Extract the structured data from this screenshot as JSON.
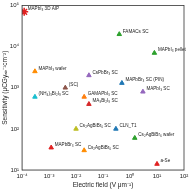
{
  "chart_data": {
    "type": "scatter",
    "x_label": "Electric field (V μm⁻¹)",
    "y_label": "Sensitivity (μCGyₐᵢᵣ⁻¹cm⁻²)",
    "log": true,
    "grid": false,
    "xlim": [
      0.0001,
      100
    ],
    "xticks": [
      {
        "value": 0.0001,
        "label": "10⁻⁴"
      },
      {
        "value": 0.001,
        "label": "10⁻³"
      },
      {
        "value": 0.01,
        "label": "10⁻²"
      },
      {
        "value": 0.1,
        "label": "10⁻¹"
      },
      {
        "value": 1,
        "label": "10⁰"
      },
      {
        "value": 10,
        "label": "10¹"
      },
      {
        "value": 100,
        "label": "10²"
      }
    ],
    "ylim": [
      10,
      100000
    ],
    "yticks": [
      {
        "value": 10,
        "label": "10¹"
      },
      {
        "value": 100,
        "label": "10²"
      },
      {
        "value": 1000,
        "label": "10³"
      },
      {
        "value": 10000,
        "label": "10⁴"
      },
      {
        "value": 100000,
        "label": "10⁵"
      }
    ],
    "series": [
      {
        "name": "MAPbI₃ 3D AIP",
        "color": "#e02020",
        "marker": "star",
        "x": [
          0.00012
        ],
        "values": [
          70000
        ]
      },
      {
        "name": "FAMACs SC",
        "color": "#2ca02c",
        "marker": "triangle",
        "x": [
          0.4
        ],
        "values": [
          20000
        ]
      },
      {
        "name": "MAPbI₃ pellet",
        "color": "#2ca02c",
        "marker": "triangle",
        "x": [
          8
        ],
        "values": [
          7000
        ]
      },
      {
        "name": "MAPbI₃ wafer",
        "color": "#ff8c00",
        "marker": "triangle",
        "x": [
          0.0003
        ],
        "values": [
          2500
        ]
      },
      {
        "name": "CsPbBr₃ SC",
        "color": "#9467bd",
        "marker": "triangle",
        "x": [
          0.03
        ],
        "values": [
          2000
        ]
      },
      {
        "name": "MAPbBr₃ SC (PIN)",
        "color": "#1f77b4",
        "marker": "triangle",
        "x": [
          0.5
        ],
        "values": [
          1300
        ]
      },
      {
        "name": "(SC)",
        "color": "#8c564b",
        "marker": "triangle",
        "x": [
          0.004
        ],
        "values": [
          1000
        ]
      },
      {
        "name": "MAPbI₃ SC",
        "color": "#9467bd",
        "marker": "triangle",
        "x": [
          3
        ],
        "values": [
          800
        ]
      },
      {
        "name": "(NH₄)₃Bi₂I₉ SC",
        "color": "#17becf",
        "marker": "triangle",
        "x": [
          0.0003
        ],
        "values": [
          600
        ]
      },
      {
        "name": "GAMAPbI₃ SC",
        "color": "#ff7f0e",
        "marker": "triangle",
        "x": [
          0.02
        ],
        "values": [
          600
        ]
      },
      {
        "name": "MA₃Bi₂I₉ SC",
        "color": "#d62728",
        "marker": "triangle",
        "x": [
          0.03
        ],
        "values": [
          400
        ]
      },
      {
        "name": "Cs₂AgBiBr₆ SC",
        "color": "#bcbd22",
        "marker": "triangle",
        "x": [
          0.01
        ],
        "values": [
          100
        ]
      },
      {
        "name": "CLN_T1",
        "color": "#1f77b4",
        "marker": "triangle",
        "x": [
          0.3
        ],
        "values": [
          100
        ]
      },
      {
        "name": "MAPbBr₃ SC",
        "color": "#e02020",
        "marker": "triangle",
        "x": [
          0.0012
        ],
        "values": [
          35
        ]
      },
      {
        "name": "Cs₂AgBiBr₆ SC",
        "color": "#ff8c00",
        "marker": "triangle",
        "x": [
          0.02
        ],
        "values": [
          30
        ]
      },
      {
        "name": "Cs₂AgBiBr₆ wafer",
        "color": "#2ca02c",
        "marker": "triangle",
        "x": [
          1.5
        ],
        "values": [
          60
        ]
      },
      {
        "name": "a-Se",
        "color": "#e02020",
        "marker": "triangle",
        "x": [
          10
        ],
        "values": [
          14
        ]
      }
    ]
  }
}
